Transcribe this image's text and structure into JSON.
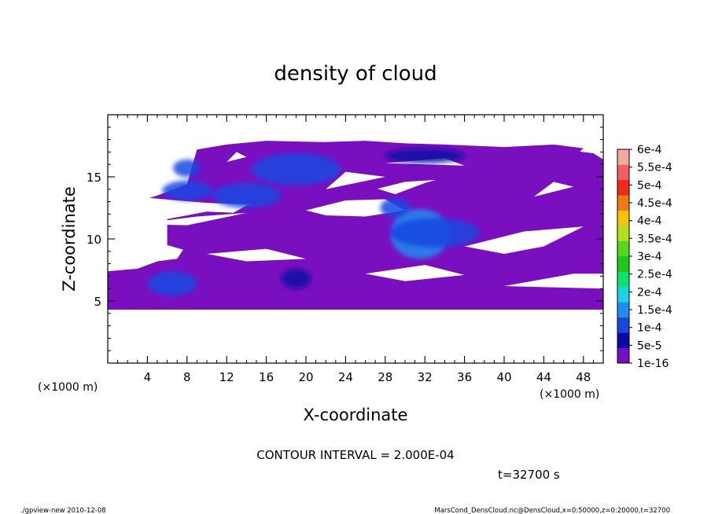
{
  "chart_data": {
    "type": "heatmap",
    "title": "density of cloud",
    "xlabel": "X-coordinate",
    "ylabel": "Z-coordinate",
    "x_unit_left": "(×1000 m)",
    "x_unit_right": "(×1000 m)",
    "xlim": [
      0,
      50
    ],
    "ylim": [
      0,
      20
    ],
    "xticks": [
      "4",
      "8",
      "12",
      "16",
      "20",
      "24",
      "28",
      "32",
      "36",
      "40",
      "44",
      "48"
    ],
    "xtick_values": [
      4,
      8,
      12,
      16,
      20,
      24,
      28,
      32,
      36,
      40,
      44,
      48
    ],
    "yticks": [
      "5",
      "10",
      "15"
    ],
    "ytick_values": [
      5,
      10,
      15
    ],
    "colorbar": {
      "labels": [
        "1e-16",
        "5e-5",
        "1e-4",
        "1.5e-4",
        "2e-4",
        "2.5e-4",
        "3e-4",
        "3.5e-4",
        "4e-4",
        "4.5e-4",
        "5e-4",
        "5.5e-4",
        "6e-4"
      ],
      "colors": [
        "#7a0fbf",
        "#0a0aa6",
        "#1848e0",
        "#1f8cf0",
        "#18d4e6",
        "#10e070",
        "#1cc81c",
        "#54d81e",
        "#b0e018",
        "#f6c20a",
        "#f07a12",
        "#ee2a1a",
        "#f06060",
        "#f4a8a0"
      ]
    },
    "base_region": {
      "level": "1e-16",
      "z_range": [
        4.3,
        17.9
      ]
    },
    "features": [
      {
        "label": "1e-4",
        "x_center": 19,
        "z_center": 15.6,
        "x_halfwidth": 4.5,
        "z_halfwidth": 1.3
      },
      {
        "label": "1e-4",
        "x_center": 14,
        "z_center": 13.5,
        "x_halfwidth": 3.5,
        "z_halfwidth": 1.0
      },
      {
        "label": "1e-4",
        "x_center": 8,
        "z_center": 13.9,
        "x_halfwidth": 2.5,
        "z_halfwidth": 0.8
      },
      {
        "label": "1e-4",
        "x_center": 8,
        "z_center": 15.7,
        "x_halfwidth": 1.4,
        "z_halfwidth": 0.7
      },
      {
        "label": "1.5e-4",
        "x_center": 31.5,
        "z_center": 10.4,
        "x_halfwidth": 3.0,
        "z_halfwidth": 2.0
      },
      {
        "label": "1e-4",
        "x_center": 33,
        "z_center": 10.5,
        "x_halfwidth": 4.5,
        "z_halfwidth": 1.2
      },
      {
        "label": "1e-4",
        "x_center": 29,
        "z_center": 12.5,
        "x_halfwidth": 1.5,
        "z_halfwidth": 0.8
      },
      {
        "label": "1e-4",
        "x_center": 6.5,
        "z_center": 6.4,
        "x_halfwidth": 2.5,
        "z_halfwidth": 1.0
      },
      {
        "label": "5e-5",
        "x_center": 19,
        "z_center": 6.8,
        "x_halfwidth": 1.5,
        "z_halfwidth": 0.8
      },
      {
        "label": "5e-5",
        "x_center": 32,
        "z_center": 16.7,
        "x_halfwidth": 4.0,
        "z_halfwidth": 0.6
      }
    ],
    "grid": false,
    "legend": "right colorbar"
  },
  "annotations": {
    "contour_interval": "CONTOUR INTERVAL = 2.000E-04",
    "time": "t=32700 s",
    "footer_left": "./gpview-new  2010-12-08",
    "footer_right": "MarsCond_DensCloud.nc@DensCloud,x=0:50000,z=0:20000,t=32700"
  }
}
